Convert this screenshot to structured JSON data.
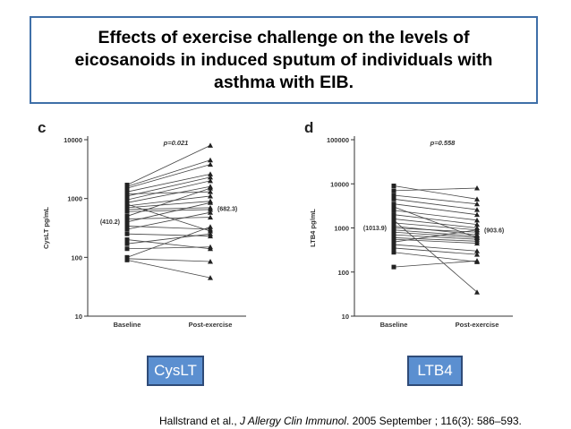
{
  "title": "Effects of exercise challenge on the levels of\neicosanoids in induced sputum of individuals with\nasthma with EIB.",
  "labels": {
    "left": "CysLT",
    "right": "LTB4"
  },
  "citation": {
    "authors": "Hallstrand et al., ",
    "journal": "J Allergy Clin Immunol",
    "rest": ". 2005 September ; 116(3): 586–593."
  },
  "colors": {
    "title_border": "#3f6fa8",
    "tag_fill": "#5b8fd0",
    "tag_border": "#2f4b78"
  },
  "chart_data": [
    {
      "type": "line",
      "panel_letter": "c",
      "ylabel": "CysLT  pg/mL",
      "yscale": "log",
      "ylim": [
        10,
        10000
      ],
      "yticks": [
        "10",
        "100",
        "1000",
        "10000"
      ],
      "categories": [
        "Baseline",
        "Post-exercise"
      ],
      "p_value": "p=0.021",
      "median_labels": [
        "(410.2)",
        "(682.3)"
      ],
      "medians": [
        410.2,
        682.3
      ],
      "pairs": [
        [
          1700,
          8000
        ],
        [
          1600,
          4500
        ],
        [
          1500,
          3800
        ],
        [
          1300,
          2600
        ],
        [
          1100,
          2300
        ],
        [
          950,
          2000
        ],
        [
          850,
          1600
        ],
        [
          750,
          1100
        ],
        [
          700,
          900
        ],
        [
          650,
          700
        ],
        [
          600,
          650
        ],
        [
          500,
          1500
        ],
        [
          450,
          480
        ],
        [
          400,
          850
        ],
        [
          340,
          300
        ],
        [
          300,
          580
        ],
        [
          250,
          230
        ],
        [
          200,
          140
        ],
        [
          170,
          250
        ],
        [
          140,
          150
        ],
        [
          100,
          330
        ],
        [
          95,
          85
        ],
        [
          90,
          45
        ],
        [
          1200,
          1300
        ],
        [
          800,
          280
        ]
      ]
    },
    {
      "type": "line",
      "panel_letter": "d",
      "ylabel": "LTB4  pg/mL",
      "yscale": "log",
      "ylim": [
        10,
        100000
      ],
      "yticks": [
        "10",
        "100",
        "1000",
        "10000",
        "100000"
      ],
      "categories": [
        "Baseline",
        "Post-exercise"
      ],
      "p_value": "p=0.558",
      "median_labels": [
        "(1013.9)",
        "(903.6)"
      ],
      "medians": [
        1013.9,
        903.6
      ],
      "pairs": [
        [
          9000,
          4500
        ],
        [
          7000,
          8000
        ],
        [
          5500,
          3500
        ],
        [
          4500,
          2600
        ],
        [
          3500,
          2000
        ],
        [
          2500,
          1500
        ],
        [
          2000,
          1200
        ],
        [
          1600,
          1000
        ],
        [
          1300,
          900
        ],
        [
          1100,
          700
        ],
        [
          1000,
          800
        ],
        [
          900,
          650
        ],
        [
          800,
          600
        ],
        [
          700,
          550
        ],
        [
          600,
          500
        ],
        [
          550,
          450
        ],
        [
          480,
          900
        ],
        [
          420,
          300
        ],
        [
          350,
          250
        ],
        [
          280,
          170
        ],
        [
          130,
          180
        ],
        [
          1500,
          35
        ],
        [
          3000,
          600
        ]
      ]
    }
  ]
}
